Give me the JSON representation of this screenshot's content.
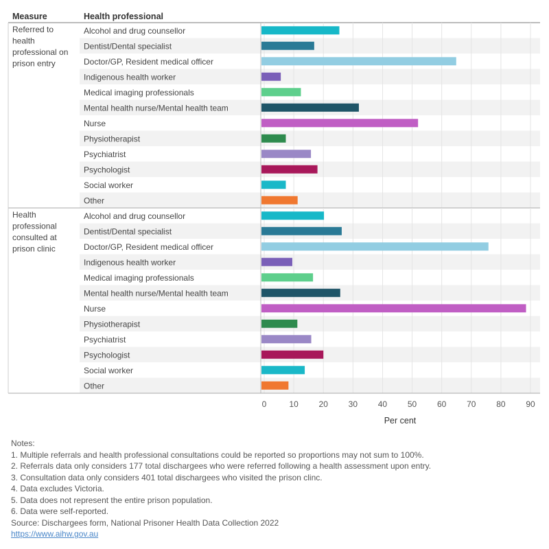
{
  "chart_data": {
    "type": "bar",
    "orientation": "horizontal",
    "header": {
      "measure": "Measure",
      "professional": "Health professional"
    },
    "xlabel": "Per cent",
    "xlim": [
      0,
      90
    ],
    "xticks": [
      0,
      10,
      20,
      30,
      40,
      50,
      60,
      70,
      80,
      90
    ],
    "grid": true,
    "categories": [
      "Alcohol and drug counsellor",
      "Dentist/Dental specialist",
      "Doctor/GP, Resident medical officer",
      "Indigenous health worker",
      "Medical imaging professionals",
      "Mental health nurse/Mental health team",
      "Nurse",
      "Physiotherapist",
      "Psychiatrist",
      "Psychologist",
      "Social worker",
      "Other"
    ],
    "colors": [
      "#17b8c8",
      "#2a7a96",
      "#92cde2",
      "#7a5fb8",
      "#5ecf8c",
      "#1f5568",
      "#c05ec4",
      "#2e8b4e",
      "#9a88c6",
      "#a8185a",
      "#1ab8c8",
      "#f07830"
    ],
    "groups": [
      {
        "name": "Referred to health professional on prison entry",
        "label_lines": [
          "Referred to",
          "health",
          "professional on",
          "prison entry"
        ],
        "values": [
          25.4,
          16.9,
          64.9,
          5.6,
          12.4,
          32,
          52,
          7.3,
          15.8,
          18,
          7.3,
          11.3
        ]
      },
      {
        "name": "Health professional consulted at prison clinic",
        "label_lines": [
          "Health",
          "professional",
          "consulted at",
          "prison clinic"
        ],
        "values": [
          20.2,
          26.2,
          75.8,
          9.5,
          16.5,
          25.7,
          88.5,
          11.2,
          15.9,
          20,
          13.7,
          8.2
        ]
      }
    ]
  },
  "notes": {
    "heading": "Notes:",
    "lines": [
      "1. Multiple referrals and health professional consultations could be reported so proportions may not sum to 100%.",
      "2. Referrals data only considers 177 total dischargees who were referred following a health assessment upon entry.",
      "3. Consultation data only considers 401 total dischargees who visited the prison clinc.",
      "4. Data excludes Victoria.",
      "5. Data does not represent the entire prison population.",
      "6. Data were self-reported.",
      "Source: Dischargees form, National Prisoner Health Data Collection 2022"
    ],
    "link": "https://www.aihw.gov.au"
  }
}
